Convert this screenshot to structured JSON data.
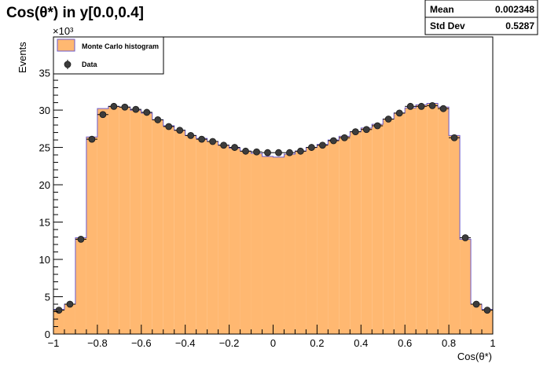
{
  "chart_data": {
    "type": "bar",
    "title": "Cos(θ*) in y[0.0,0.4]",
    "xlabel": "Cos(θ*)",
    "ylabel": "Events",
    "y_multiplier": "×10³",
    "xlim": [
      -1,
      1
    ],
    "ylim": [
      0,
      39.8
    ],
    "xticks": [
      -1,
      -0.8,
      -0.6,
      -0.4,
      -0.2,
      0,
      0.2,
      0.4,
      0.6,
      0.8,
      1
    ],
    "xtick_labels": [
      "−1",
      "−0.8",
      "−0.6",
      "−0.4",
      "−0.2",
      "0",
      "0.2",
      "0.4",
      "0.6",
      "0.8",
      "1"
    ],
    "yticks": [
      0,
      5,
      10,
      15,
      20,
      25,
      30,
      35
    ],
    "ytick_labels": [
      "0",
      "5",
      "10",
      "15",
      "20",
      "25",
      "30",
      "35"
    ],
    "bin_edges": [
      -1.0,
      -0.95,
      -0.9,
      -0.85,
      -0.8,
      -0.75,
      -0.7,
      -0.65,
      -0.6,
      -0.55,
      -0.5,
      -0.45,
      -0.4,
      -0.35,
      -0.3,
      -0.25,
      -0.2,
      -0.15,
      -0.1,
      -0.05,
      0.0,
      0.05,
      0.1,
      0.15,
      0.2,
      0.25,
      0.3,
      0.35,
      0.4,
      0.45,
      0.5,
      0.55,
      0.6,
      0.65,
      0.7,
      0.75,
      0.8,
      0.85,
      0.9,
      0.95,
      1.0
    ],
    "series": [
      {
        "name": "Monte Carlo histogram",
        "style": "filled-histogram",
        "fill_color": "#ffb871",
        "line_color": "#6a5acd",
        "values": [
          3.3,
          4.0,
          12.9,
          26.4,
          30.2,
          30.5,
          30.4,
          30.0,
          29.6,
          28.7,
          27.9,
          27.3,
          26.6,
          26.2,
          25.8,
          25.3,
          24.9,
          24.5,
          24.2,
          23.8,
          23.7,
          24.1,
          24.5,
          25.0,
          25.4,
          26.0,
          26.5,
          27.1,
          27.6,
          28.1,
          28.8,
          29.6,
          30.3,
          30.7,
          30.9,
          30.4,
          26.6,
          12.7,
          4.0,
          3.3
        ]
      },
      {
        "name": "Data",
        "style": "markers",
        "marker_color": "#3c3c3c",
        "values": [
          3.2,
          4.0,
          12.7,
          26.1,
          29.4,
          30.5,
          30.4,
          30.1,
          29.7,
          28.7,
          27.8,
          27.3,
          26.6,
          26.1,
          25.8,
          25.3,
          25.0,
          24.5,
          24.4,
          24.3,
          24.3,
          24.3,
          24.5,
          25.0,
          25.3,
          25.9,
          26.3,
          27.1,
          27.4,
          27.9,
          28.8,
          29.6,
          30.5,
          30.5,
          30.6,
          30.2,
          26.3,
          12.9,
          4.0,
          3.2
        ]
      }
    ],
    "legend": "top-left",
    "grid": false
  },
  "stats": {
    "rows": [
      {
        "label": "Mean",
        "value": "0.002348"
      },
      {
        "label": "Std Dev",
        "value": "0.5287"
      }
    ]
  }
}
